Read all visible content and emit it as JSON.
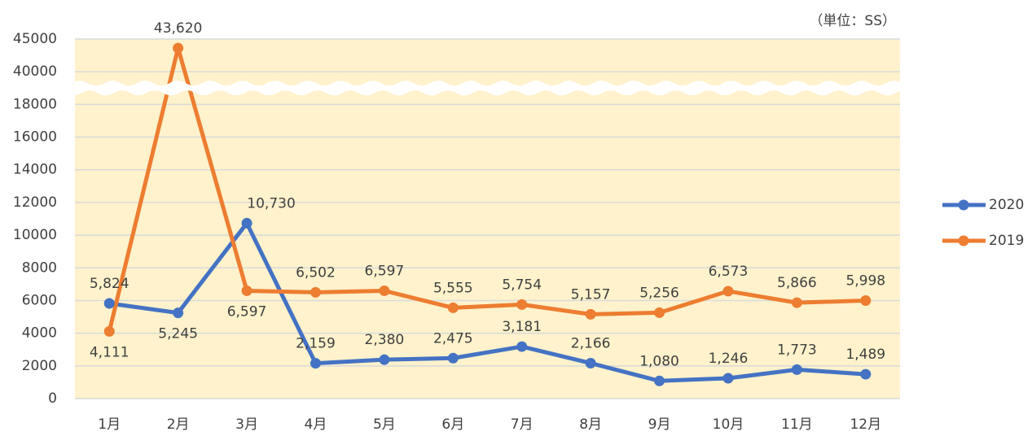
{
  "chart_data": {
    "type": "line",
    "unit_note": "（単位：SS）",
    "categories": [
      "1月",
      "2月",
      "3月",
      "4月",
      "5月",
      "6月",
      "7月",
      "8月",
      "9月",
      "10月",
      "11月",
      "12月"
    ],
    "series": [
      {
        "name": "2020",
        "color": "#4472c4",
        "values": [
          5824,
          5245,
          10730,
          2159,
          2380,
          2475,
          3181,
          2166,
          1080,
          1246,
          1773,
          1489
        ],
        "value_labels": [
          "5,824",
          "5,245",
          "10,730",
          "2,159",
          "2,380",
          "2,475",
          "3,181",
          "2,166",
          "1,080",
          "1,246",
          "1,773",
          "1,489"
        ]
      },
      {
        "name": "2019",
        "color": "#ed7d31",
        "values": [
          4111,
          43620,
          6597,
          6502,
          6597,
          5555,
          5754,
          5157,
          5256,
          6573,
          5866,
          5998
        ],
        "value_labels": [
          "4,111",
          "43,620",
          "6,597",
          "6,502",
          "6,597",
          "5,555",
          "5,754",
          "5,157",
          "5,256",
          "6,573",
          "5,866",
          "5,998"
        ]
      }
    ],
    "ylim": [
      0,
      45000
    ],
    "yticks": [
      0,
      2000,
      4000,
      6000,
      8000,
      10000,
      12000,
      14000,
      16000,
      18000,
      40000,
      45000
    ],
    "axis_break": [
      18000,
      40000
    ],
    "grid": true,
    "legend": "right"
  }
}
